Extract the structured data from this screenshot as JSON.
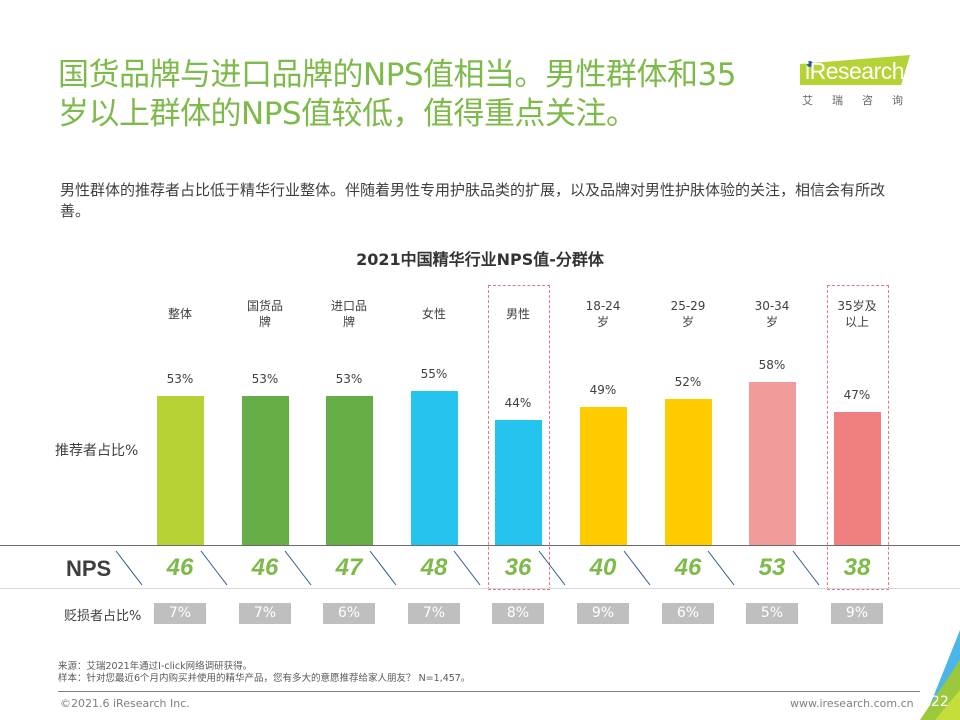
{
  "header": {
    "title_line1": "国货品牌与进口品牌的NPS值相当。男性群体和35",
    "title_line2": "岁以上群体的NPS值较低，值得重点关注。",
    "logo_text": "iResearch",
    "logo_cn": "艾瑞咨询"
  },
  "subtitle": "男性群体的推荐者占比低于精华行业整体。伴随着男性专用护肤品类的扩展，以及品牌对男性护肤体验的关注，相信会有所改善。",
  "colors": {
    "title_green": "#7dba4a",
    "bar_lime": "#b5d334",
    "bar_green": "#65ad45",
    "bar_cyan": "#25c4ef",
    "bar_yellow": "#ffcc00",
    "bar_pink": "#f29b9b",
    "bar_coral": "#f08080",
    "detractor_box": "#bfbfbf",
    "highlight_border": "#e07a80"
  },
  "chart_data": {
    "type": "bar",
    "title": "2021中国精华行业NPS值-分群体",
    "xlabel": "",
    "ylabel": "推荐者占比%",
    "ylim": [
      0,
      100
    ],
    "categories": [
      "整体",
      "国货品牌",
      "进口品牌",
      "女性",
      "男性",
      "18-24岁",
      "25-29岁",
      "30-34岁",
      "35岁及以上"
    ],
    "category_lines": [
      [
        "整体"
      ],
      [
        "国货品",
        "牌"
      ],
      [
        "进口品",
        "牌"
      ],
      [
        "女性"
      ],
      [
        "男性"
      ],
      [
        "18-24",
        "岁"
      ],
      [
        "25-29",
        "岁"
      ],
      [
        "30-34",
        "岁"
      ],
      [
        "35岁及",
        "以上"
      ]
    ],
    "series": [
      {
        "name": "推荐者占比%",
        "values": [
          53,
          53,
          53,
          55,
          44,
          49,
          52,
          58,
          47
        ],
        "unit": "%"
      },
      {
        "name": "NPS",
        "values": [
          46,
          46,
          47,
          48,
          36,
          40,
          46,
          53,
          38
        ]
      },
      {
        "name": "贬损者占比%",
        "values": [
          7,
          7,
          6,
          7,
          8,
          9,
          6,
          5,
          9
        ],
        "unit": "%"
      }
    ],
    "bar_colors": [
      "#b5d334",
      "#65ad45",
      "#65ad45",
      "#25c4ef",
      "#25c4ef",
      "#ffcc00",
      "#ffcc00",
      "#f29b9b",
      "#f08080"
    ],
    "highlighted": [
      "男性",
      "35岁及以上"
    ],
    "grid": false,
    "legend": "none"
  },
  "row_labels": {
    "promoter": "推荐者占比%",
    "nps": "NPS",
    "detractor": "贬损者占比%"
  },
  "footer": {
    "source": "来源：艾瑞2021年通过I-click网络调研获得。",
    "sample": "样本：针对您最近6个月内购买并使用的精华产品，您有多大的意愿推荐给家人朋友？ N=1,457。",
    "copyright": "©2021.6 iResearch Inc.",
    "website": "www.iresearch.com.cn",
    "page_number": "22"
  }
}
